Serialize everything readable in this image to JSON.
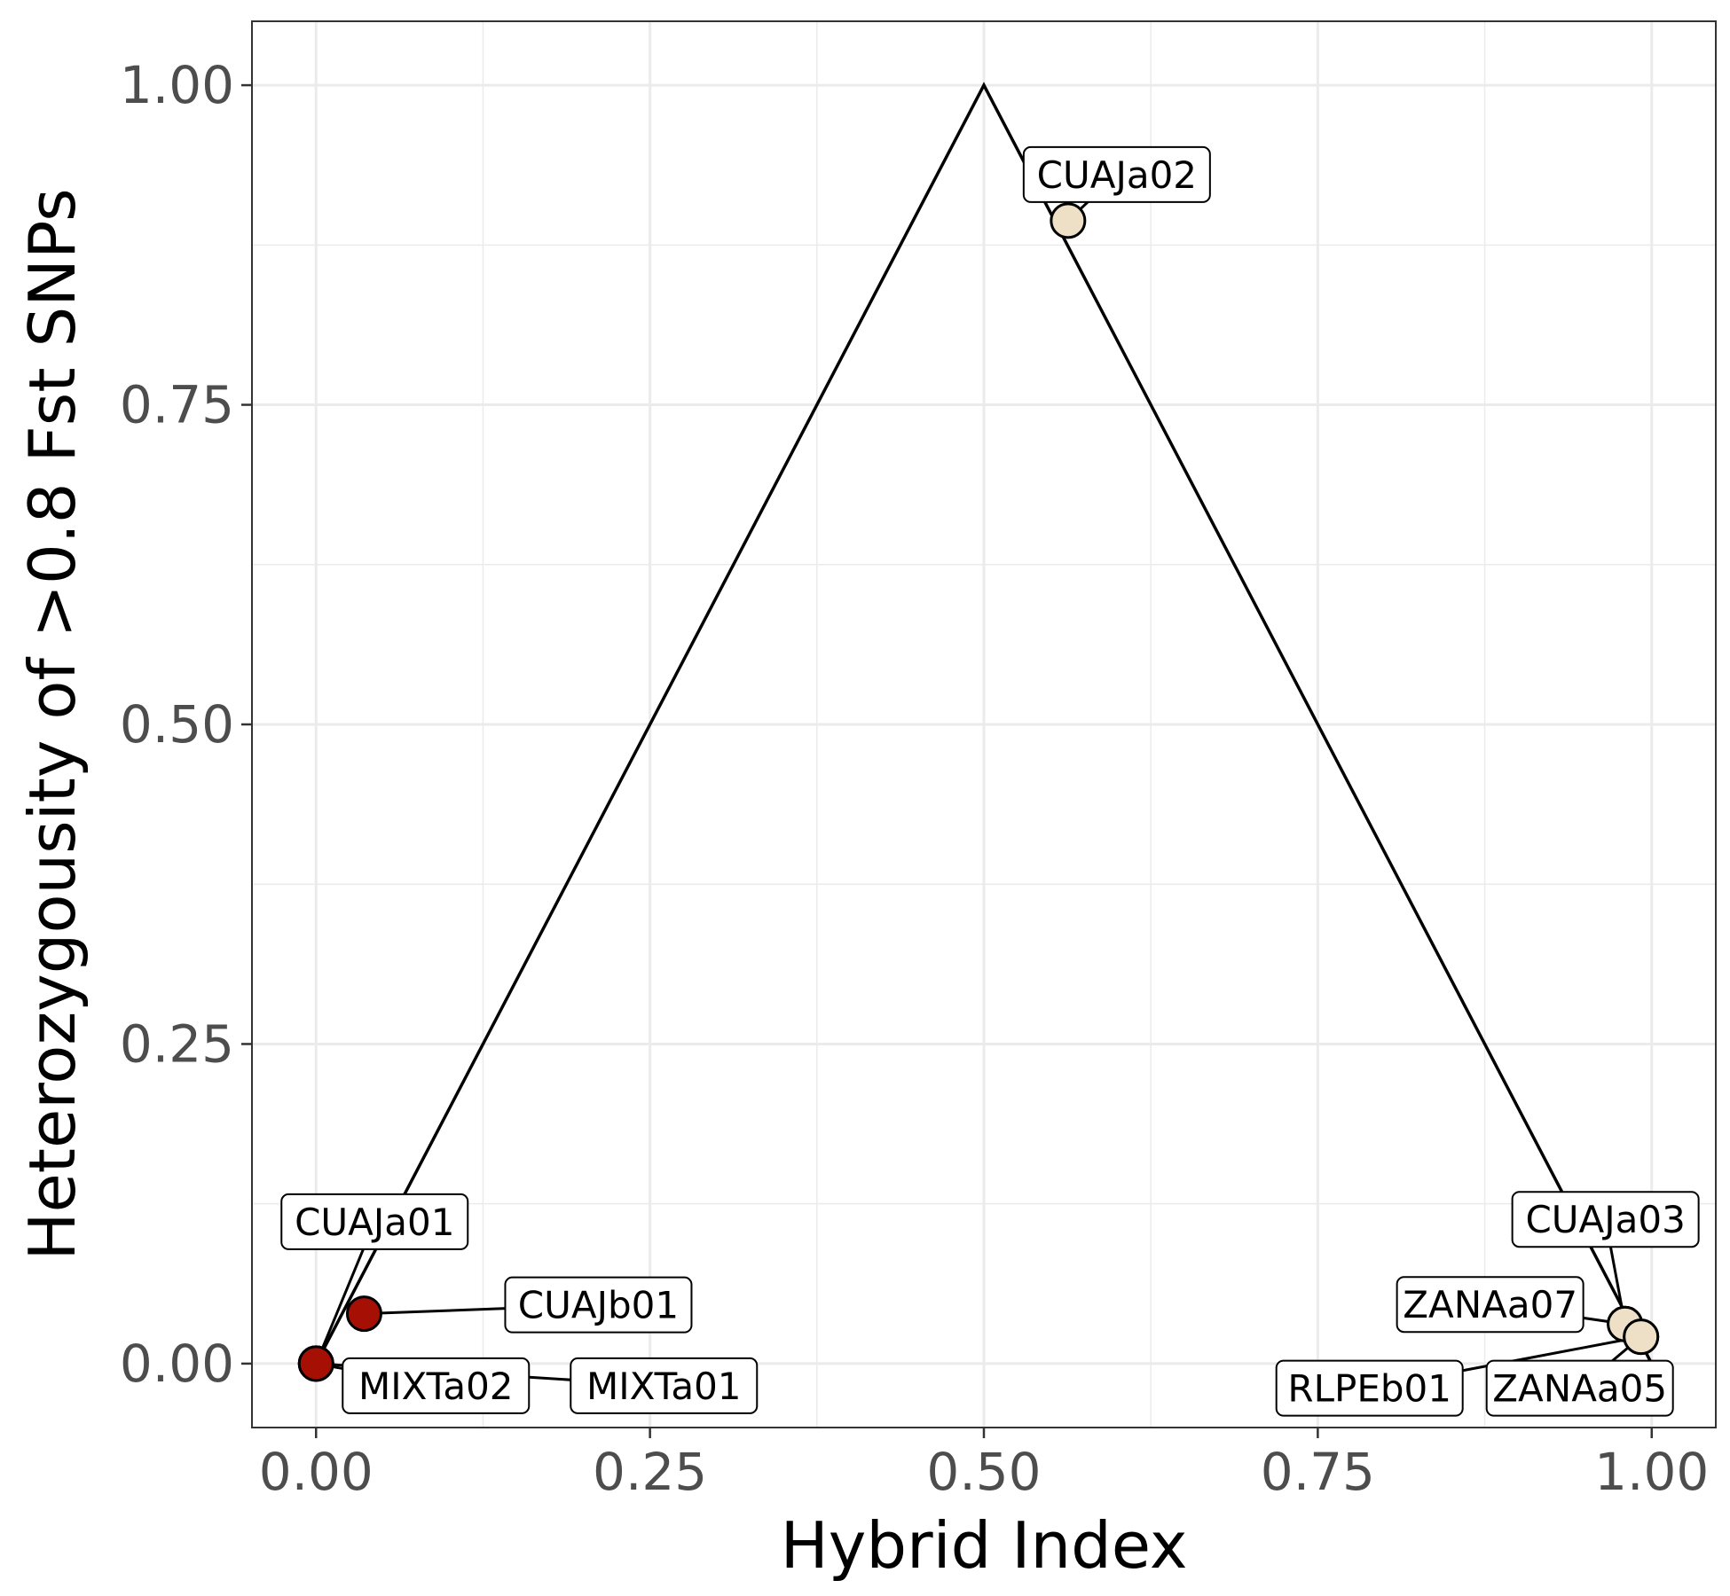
{
  "chart_data": {
    "type": "scatter",
    "xlabel": "Hybrid Index",
    "ylabel": "Heterozygousity of >0.8 Fst SNPs",
    "xlim": [
      -0.048,
      1.048
    ],
    "ylim": [
      -0.05,
      1.05
    ],
    "x_ticks": [
      "0.00",
      "0.25",
      "0.50",
      "0.75",
      "1.00"
    ],
    "y_ticks": [
      "0.00",
      "0.25",
      "0.50",
      "0.75",
      "1.00"
    ],
    "grid": true,
    "reference_line": {
      "x": [
        0,
        0.5,
        1
      ],
      "y": [
        0,
        1,
        0
      ]
    },
    "colors": {
      "red_group": "#a50f04",
      "beige_group": "#ede0c6",
      "grid": "#ebebeb",
      "line": "#000000"
    },
    "points": [
      {
        "label": "CUAJa01",
        "x": 0.0,
        "y": 0.0,
        "color": "#a50f04"
      },
      {
        "label": "MIXTa02",
        "x": 0.0,
        "y": 0.0,
        "color": "#a50f04"
      },
      {
        "label": "MIXTa01",
        "x": 0.0,
        "y": 0.0,
        "color": "#a50f04"
      },
      {
        "label": "CUAJb01",
        "x": 0.036,
        "y": 0.039,
        "color": "#a50f04"
      },
      {
        "label": "CUAJa02",
        "x": 0.563,
        "y": 0.894,
        "color": "#ede0c6"
      },
      {
        "label": "CUAJa03",
        "x": 0.98,
        "y": 0.031,
        "color": "#ede0c6"
      },
      {
        "label": "ZANAa07",
        "x": 0.98,
        "y": 0.031,
        "color": "#ede0c6"
      },
      {
        "label": "ZANAa05",
        "x": 0.992,
        "y": 0.021,
        "color": "#ede0c6"
      },
      {
        "label": "RLPEb01",
        "x": 0.992,
        "y": 0.021,
        "color": "#ede0c6"
      }
    ]
  }
}
